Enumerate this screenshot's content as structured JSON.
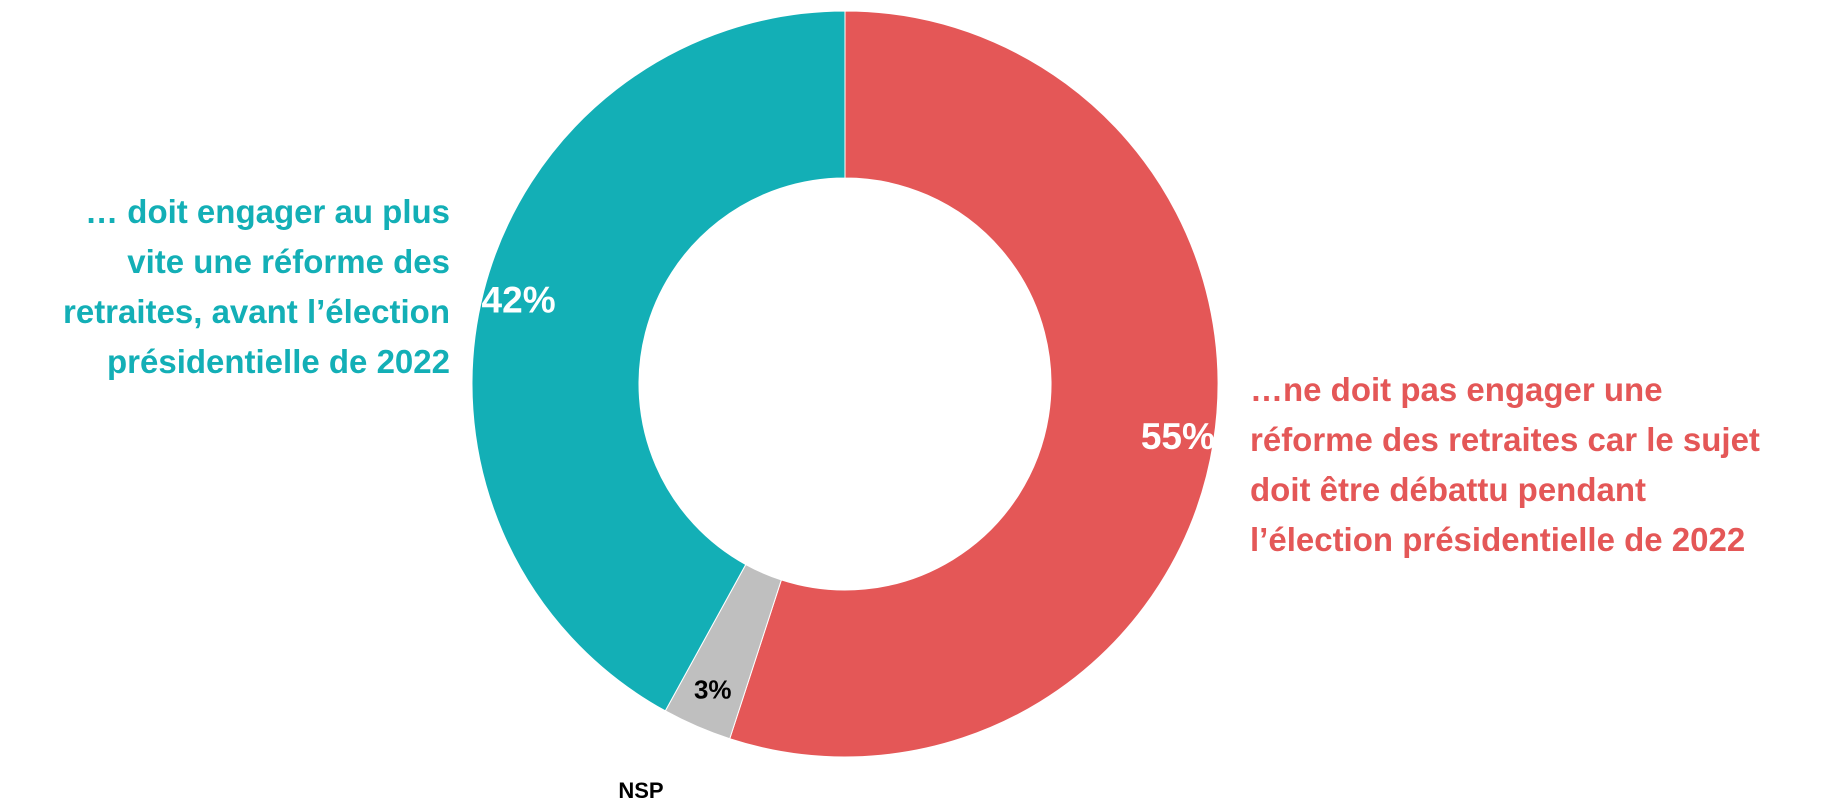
{
  "chart_data": {
    "type": "pie",
    "donut": true,
    "slices": [
      {
        "value": 55,
        "label": "55%",
        "description": [
          "…ne doit pas engager une",
          "réforme des retraites car le sujet",
          "doit être débattu pendant",
          "l’élection présidentielle de 2022"
        ],
        "color": "#E45757",
        "label_color": "#FFFFFF"
      },
      {
        "value": 3,
        "label": "3%",
        "category": "NSP",
        "color": "#BFBFBF",
        "label_color": "#000000"
      },
      {
        "value": 42,
        "label": "42%",
        "description": [
          "… doit engager au plus",
          "vite une réforme des",
          "retraites, avant l’élection",
          "présidentielle de 2022"
        ],
        "color": "#13AFB6",
        "label_color": "#FFFFFF"
      }
    ],
    "start_angle": "top",
    "direction": "clockwise"
  }
}
